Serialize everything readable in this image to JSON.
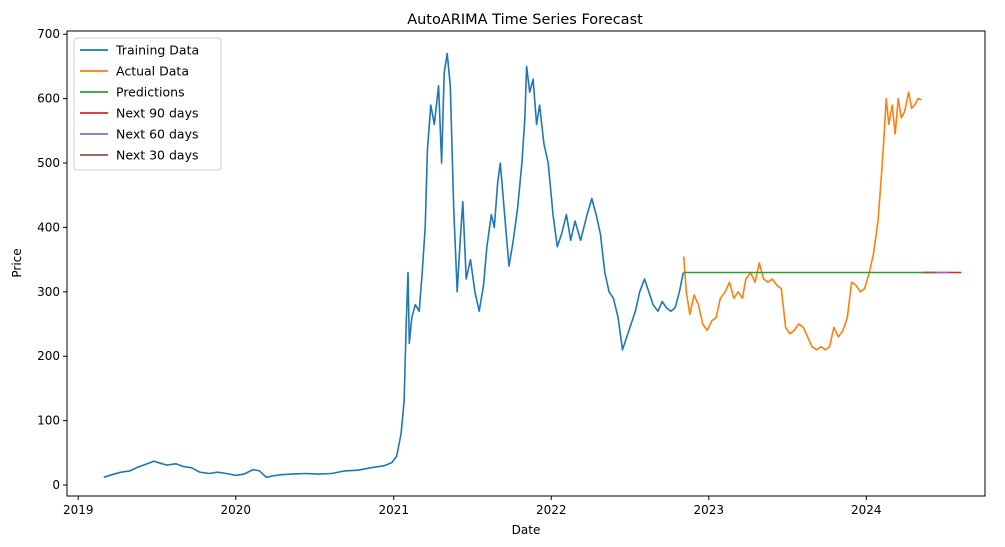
{
  "chart_data": {
    "type": "line",
    "title": "AutoARIMA Time Series Forecast",
    "xlabel": "Date",
    "ylabel": "Price",
    "xlim": [
      "2018-12-06",
      "2024-10-02"
    ],
    "ylim": [
      -17,
      705
    ],
    "grid": false,
    "legend": "top-left",
    "x_ticks": [
      {
        "label": "2019",
        "value": "2019-01-01"
      },
      {
        "label": "2020",
        "value": "2020-01-01"
      },
      {
        "label": "2021",
        "value": "2021-01-01"
      },
      {
        "label": "2022",
        "value": "2022-01-01"
      },
      {
        "label": "2023",
        "value": "2023-01-01"
      },
      {
        "label": "2024",
        "value": "2024-01-01"
      }
    ],
    "y_ticks": [
      0,
      100,
      200,
      300,
      400,
      500,
      600,
      700
    ],
    "series": [
      {
        "name": "Training Data",
        "color": "#1f77b4",
        "points": [
          [
            "2019-03-01",
            12
          ],
          [
            "2019-03-20",
            16
          ],
          [
            "2019-04-10",
            20
          ],
          [
            "2019-05-01",
            22
          ],
          [
            "2019-05-20",
            28
          ],
          [
            "2019-06-10",
            33
          ],
          [
            "2019-06-25",
            37
          ],
          [
            "2019-07-10",
            34
          ],
          [
            "2019-07-25",
            31
          ],
          [
            "2019-08-15",
            33
          ],
          [
            "2019-09-01",
            29
          ],
          [
            "2019-09-20",
            27
          ],
          [
            "2019-10-10",
            20
          ],
          [
            "2019-11-01",
            18
          ],
          [
            "2019-11-20",
            20
          ],
          [
            "2019-12-10",
            18
          ],
          [
            "2020-01-01",
            15
          ],
          [
            "2020-01-20",
            17
          ],
          [
            "2020-02-10",
            24
          ],
          [
            "2020-02-25",
            22
          ],
          [
            "2020-03-12",
            12
          ],
          [
            "2020-03-25",
            14
          ],
          [
            "2020-04-15",
            16
          ],
          [
            "2020-05-10",
            17
          ],
          [
            "2020-06-10",
            18
          ],
          [
            "2020-07-10",
            17
          ],
          [
            "2020-08-10",
            18
          ],
          [
            "2020-09-10",
            22
          ],
          [
            "2020-10-10",
            23
          ],
          [
            "2020-11-10",
            27
          ],
          [
            "2020-12-10",
            30
          ],
          [
            "2020-12-28",
            35
          ],
          [
            "2021-01-08",
            45
          ],
          [
            "2021-01-18",
            80
          ],
          [
            "2021-01-25",
            130
          ],
          [
            "2021-01-30",
            250
          ],
          [
            "2021-02-03",
            330
          ],
          [
            "2021-02-06",
            220
          ],
          [
            "2021-02-12",
            260
          ],
          [
            "2021-02-20",
            280
          ],
          [
            "2021-03-01",
            270
          ],
          [
            "2021-03-08",
            330
          ],
          [
            "2021-03-15",
            400
          ],
          [
            "2021-03-20",
            520
          ],
          [
            "2021-03-28",
            590
          ],
          [
            "2021-04-05",
            560
          ],
          [
            "2021-04-15",
            620
          ],
          [
            "2021-04-22",
            500
          ],
          [
            "2021-04-28",
            640
          ],
          [
            "2021-05-05",
            670
          ],
          [
            "2021-05-12",
            620
          ],
          [
            "2021-05-20",
            430
          ],
          [
            "2021-05-28",
            300
          ],
          [
            "2021-06-04",
            380
          ],
          [
            "2021-06-10",
            440
          ],
          [
            "2021-06-18",
            320
          ],
          [
            "2021-06-28",
            350
          ],
          [
            "2021-07-08",
            300
          ],
          [
            "2021-07-18",
            270
          ],
          [
            "2021-07-28",
            310
          ],
          [
            "2021-08-05",
            370
          ],
          [
            "2021-08-15",
            420
          ],
          [
            "2021-08-22",
            400
          ],
          [
            "2021-08-30",
            470
          ],
          [
            "2021-09-05",
            500
          ],
          [
            "2021-09-15",
            420
          ],
          [
            "2021-09-25",
            340
          ],
          [
            "2021-10-05",
            380
          ],
          [
            "2021-10-15",
            430
          ],
          [
            "2021-10-25",
            500
          ],
          [
            "2021-11-01",
            570
          ],
          [
            "2021-11-05",
            650
          ],
          [
            "2021-11-12",
            610
          ],
          [
            "2021-11-20",
            630
          ],
          [
            "2021-11-28",
            560
          ],
          [
            "2021-12-05",
            590
          ],
          [
            "2021-12-15",
            530
          ],
          [
            "2021-12-25",
            500
          ],
          [
            "2022-01-05",
            420
          ],
          [
            "2022-01-15",
            370
          ],
          [
            "2022-01-25",
            390
          ],
          [
            "2022-02-05",
            420
          ],
          [
            "2022-02-15",
            380
          ],
          [
            "2022-02-25",
            410
          ],
          [
            "2022-03-10",
            380
          ],
          [
            "2022-03-25",
            420
          ],
          [
            "2022-04-05",
            445
          ],
          [
            "2022-04-15",
            420
          ],
          [
            "2022-04-25",
            390
          ],
          [
            "2022-05-05",
            330
          ],
          [
            "2022-05-15",
            300
          ],
          [
            "2022-05-25",
            290
          ],
          [
            "2022-06-05",
            260
          ],
          [
            "2022-06-15",
            210
          ],
          [
            "2022-06-25",
            230
          ],
          [
            "2022-07-05",
            250
          ],
          [
            "2022-07-15",
            270
          ],
          [
            "2022-07-25",
            300
          ],
          [
            "2022-08-05",
            320
          ],
          [
            "2022-08-15",
            300
          ],
          [
            "2022-08-25",
            280
          ],
          [
            "2022-09-05",
            270
          ],
          [
            "2022-09-15",
            285
          ],
          [
            "2022-09-25",
            275
          ],
          [
            "2022-10-05",
            270
          ],
          [
            "2022-10-15",
            275
          ],
          [
            "2022-10-25",
            300
          ],
          [
            "2022-11-03",
            330
          ]
        ]
      },
      {
        "name": "Actual Data",
        "color": "#ff7f0e",
        "points": [
          [
            "2022-11-04",
            355
          ],
          [
            "2022-11-10",
            300
          ],
          [
            "2022-11-18",
            265
          ],
          [
            "2022-11-28",
            295
          ],
          [
            "2022-12-08",
            280
          ],
          [
            "2022-12-18",
            250
          ],
          [
            "2022-12-28",
            240
          ],
          [
            "2023-01-08",
            255
          ],
          [
            "2023-01-18",
            260
          ],
          [
            "2023-01-28",
            290
          ],
          [
            "2023-02-08",
            300
          ],
          [
            "2023-02-18",
            315
          ],
          [
            "2023-02-28",
            290
          ],
          [
            "2023-03-10",
            300
          ],
          [
            "2023-03-20",
            290
          ],
          [
            "2023-03-28",
            320
          ],
          [
            "2023-04-08",
            330
          ],
          [
            "2023-04-18",
            315
          ],
          [
            "2023-04-28",
            345
          ],
          [
            "2023-05-08",
            320
          ],
          [
            "2023-05-18",
            315
          ],
          [
            "2023-05-28",
            320
          ],
          [
            "2023-06-08",
            310
          ],
          [
            "2023-06-18",
            305
          ],
          [
            "2023-06-28",
            245
          ],
          [
            "2023-07-08",
            235
          ],
          [
            "2023-07-18",
            240
          ],
          [
            "2023-07-28",
            250
          ],
          [
            "2023-08-08",
            245
          ],
          [
            "2023-08-18",
            230
          ],
          [
            "2023-08-28",
            215
          ],
          [
            "2023-09-08",
            210
          ],
          [
            "2023-09-18",
            215
          ],
          [
            "2023-09-28",
            210
          ],
          [
            "2023-10-08",
            215
          ],
          [
            "2023-10-18",
            245
          ],
          [
            "2023-10-28",
            230
          ],
          [
            "2023-11-08",
            240
          ],
          [
            "2023-11-18",
            260
          ],
          [
            "2023-11-28",
            315
          ],
          [
            "2023-12-08",
            310
          ],
          [
            "2023-12-18",
            300
          ],
          [
            "2023-12-28",
            305
          ],
          [
            "2024-01-08",
            330
          ],
          [
            "2024-01-18",
            360
          ],
          [
            "2024-01-28",
            410
          ],
          [
            "2024-02-05",
            480
          ],
          [
            "2024-02-10",
            530
          ],
          [
            "2024-02-16",
            600
          ],
          [
            "2024-02-22",
            560
          ],
          [
            "2024-03-01",
            590
          ],
          [
            "2024-03-08",
            545
          ],
          [
            "2024-03-15",
            600
          ],
          [
            "2024-03-22",
            570
          ],
          [
            "2024-03-30",
            580
          ],
          [
            "2024-04-08",
            610
          ],
          [
            "2024-04-15",
            585
          ],
          [
            "2024-04-22",
            590
          ],
          [
            "2024-04-30",
            600
          ],
          [
            "2024-05-08",
            598
          ]
        ]
      },
      {
        "name": "Predictions",
        "color": "#2ca02c",
        "points": [
          [
            "2022-11-04",
            330
          ],
          [
            "2024-05-10",
            330
          ]
        ]
      },
      {
        "name": "Next 90 days",
        "color": "#d62728",
        "points": [
          [
            "2024-05-10",
            330
          ],
          [
            "2024-08-08",
            330
          ]
        ]
      },
      {
        "name": "Next 60 days",
        "color": "#9467bd",
        "points": [
          [
            "2024-05-10",
            330
          ],
          [
            "2024-07-09",
            330
          ]
        ]
      },
      {
        "name": "Next 30 days",
        "color": "#8c564b",
        "points": [
          [
            "2024-05-10",
            330
          ],
          [
            "2024-06-09",
            330
          ]
        ]
      }
    ]
  }
}
